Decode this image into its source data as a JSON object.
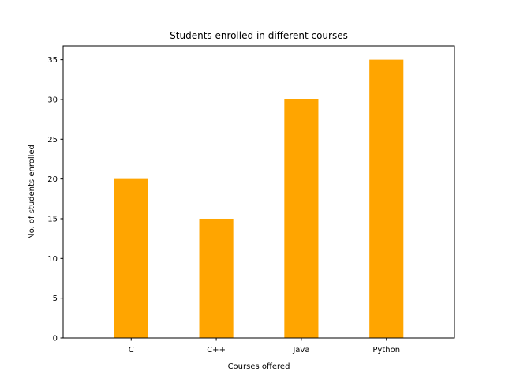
{
  "chart_data": {
    "type": "bar",
    "title": "Students enrolled in different courses",
    "xlabel": "Courses offered",
    "ylabel": "No. of students enrolled",
    "categories": [
      "C",
      "C++",
      "Java",
      "Python"
    ],
    "values": [
      20,
      15,
      30,
      35
    ],
    "ylim": [
      0,
      36.75
    ],
    "yticks": [
      0,
      5,
      10,
      15,
      20,
      25,
      30,
      35
    ],
    "bar_color": "#ffa500",
    "grid": false,
    "legend": "none"
  }
}
